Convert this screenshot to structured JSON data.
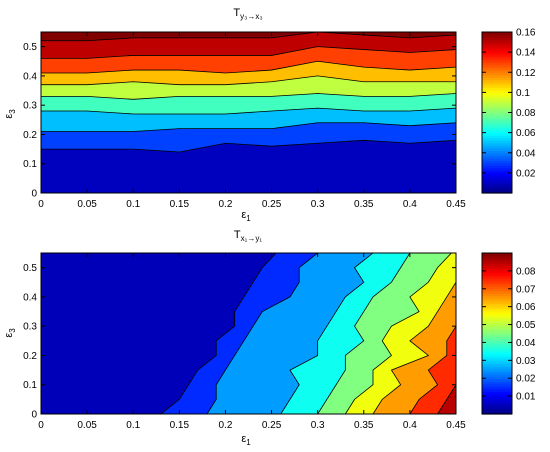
{
  "chart_data": [
    {
      "type": "contour",
      "title": "T",
      "title_sub": "y₃→x₃",
      "xlabel": "ε",
      "xlabel_sub": "1",
      "ylabel": "ε",
      "ylabel_sub": "3",
      "x": [
        0,
        0.05,
        0.1,
        0.15,
        0.2,
        0.25,
        0.3,
        0.35,
        0.4,
        0.45
      ],
      "xlim": [
        0,
        0.45
      ],
      "ylim": [
        0,
        0.55
      ],
      "x_ticks": [
        "0",
        "0.05",
        "0.1",
        "0.15",
        "0.2",
        "0.25",
        "0.3",
        "0.35",
        "0.4",
        "0.45"
      ],
      "y_ticks": [
        "0",
        "0.1",
        "0.2",
        "0.3",
        "0.4",
        "0.5"
      ],
      "y_tick_values": [
        0,
        0.1,
        0.2,
        0.3,
        0.4,
        0.5
      ],
      "colorbar": {
        "range": [
          0,
          0.16
        ],
        "tick_values": [
          0.02,
          0.04,
          0.06,
          0.08,
          0.1,
          0.12,
          0.14,
          0.16
        ],
        "tick_labels": [
          "0.02",
          "0.04",
          "0.06",
          "0.08",
          "0.1",
          "0.12",
          "0.14",
          "0.16"
        ]
      },
      "contours": [
        {
          "level": 0.02,
          "y": [
            0.15,
            0.15,
            0.15,
            0.14,
            0.17,
            0.16,
            0.17,
            0.18,
            0.17,
            0.18
          ]
        },
        {
          "level": 0.04,
          "y": [
            0.21,
            0.21,
            0.21,
            0.22,
            0.22,
            0.22,
            0.24,
            0.24,
            0.23,
            0.24
          ]
        },
        {
          "level": 0.06,
          "y": [
            0.28,
            0.28,
            0.27,
            0.27,
            0.27,
            0.28,
            0.29,
            0.28,
            0.28,
            0.29
          ]
        },
        {
          "level": 0.08,
          "y": [
            0.33,
            0.33,
            0.32,
            0.33,
            0.33,
            0.33,
            0.34,
            0.33,
            0.33,
            0.34
          ]
        },
        {
          "level": 0.1,
          "y": [
            0.37,
            0.37,
            0.38,
            0.37,
            0.37,
            0.38,
            0.4,
            0.38,
            0.38,
            0.38
          ]
        },
        {
          "level": 0.12,
          "y": [
            0.41,
            0.41,
            0.42,
            0.42,
            0.41,
            0.42,
            0.45,
            0.43,
            0.42,
            0.43
          ]
        },
        {
          "level": 0.14,
          "y": [
            0.46,
            0.46,
            0.47,
            0.47,
            0.47,
            0.47,
            0.5,
            0.49,
            0.48,
            0.49
          ]
        },
        {
          "level": 0.16,
          "y": [
            0.52,
            0.52,
            0.53,
            0.53,
            0.53,
            0.53,
            0.55,
            0.54,
            0.53,
            0.54
          ]
        }
      ]
    },
    {
      "type": "contour",
      "title": "T",
      "title_sub": "x₁→y₁",
      "xlabel": "ε",
      "xlabel_sub": "1",
      "ylabel": "ε",
      "ylabel_sub": "3",
      "y": [
        0,
        0.05,
        0.1,
        0.15,
        0.2,
        0.25,
        0.3,
        0.35,
        0.4,
        0.45,
        0.5,
        0.55
      ],
      "xlim": [
        0,
        0.45
      ],
      "ylim": [
        0,
        0.55
      ],
      "x_ticks": [
        "0",
        "0.05",
        "0.1",
        "0.15",
        "0.2",
        "0.25",
        "0.3",
        "0.35",
        "0.4",
        "0.45"
      ],
      "y_ticks": [
        "0",
        "0.1",
        "0.2",
        "0.3",
        "0.4",
        "0.5"
      ],
      "y_tick_values": [
        0,
        0.1,
        0.2,
        0.3,
        0.4,
        0.5
      ],
      "colorbar": {
        "range": [
          0,
          0.09
        ],
        "tick_values": [
          0.01,
          0.02,
          0.03,
          0.04,
          0.05,
          0.06,
          0.07,
          0.08
        ],
        "tick_labels": [
          "0.01",
          "0.02",
          "0.03",
          "0.04",
          "0.05",
          "0.06",
          "0.07",
          "0.08"
        ]
      },
      "contours": [
        {
          "level": 0.01,
          "x": [
            0.13,
            0.15,
            0.16,
            0.17,
            0.19,
            0.19,
            0.21,
            0.21,
            0.22,
            0.23,
            0.24,
            0.255
          ]
        },
        {
          "level": 0.02,
          "x": [
            0.18,
            0.19,
            0.19,
            0.2,
            0.21,
            0.22,
            0.23,
            0.24,
            0.27,
            0.28,
            0.28,
            0.3
          ]
        },
        {
          "level": 0.03,
          "x": [
            0.26,
            0.27,
            0.28,
            0.27,
            0.3,
            0.3,
            0.31,
            0.32,
            0.33,
            0.35,
            0.34,
            0.36
          ]
        },
        {
          "level": 0.04,
          "x": [
            0.3,
            0.31,
            0.32,
            0.33,
            0.33,
            0.35,
            0.34,
            0.35,
            0.36,
            0.38,
            0.39,
            0.4
          ]
        },
        {
          "level": 0.05,
          "x": [
            0.33,
            0.34,
            0.36,
            0.36,
            0.38,
            0.37,
            0.38,
            0.41,
            0.4,
            0.42,
            0.43,
            0.445
          ]
        },
        {
          "level": 0.06,
          "x": [
            0.36,
            0.37,
            0.39,
            0.38,
            0.42,
            0.4,
            0.42,
            0.43,
            0.44,
            0.45,
            0.45,
            0.45
          ]
        },
        {
          "level": 0.07,
          "x": [
            0.4,
            0.41,
            0.43,
            0.42,
            0.44,
            0.44,
            0.45,
            0.45,
            0.45,
            0.45,
            0.45,
            0.45
          ]
        },
        {
          "level": 0.08,
          "x": [
            0.43,
            0.44,
            0.45,
            0.45,
            0.45,
            0.45,
            0.45,
            0.45,
            0.45,
            0.45,
            0.45,
            0.45
          ]
        }
      ]
    }
  ]
}
